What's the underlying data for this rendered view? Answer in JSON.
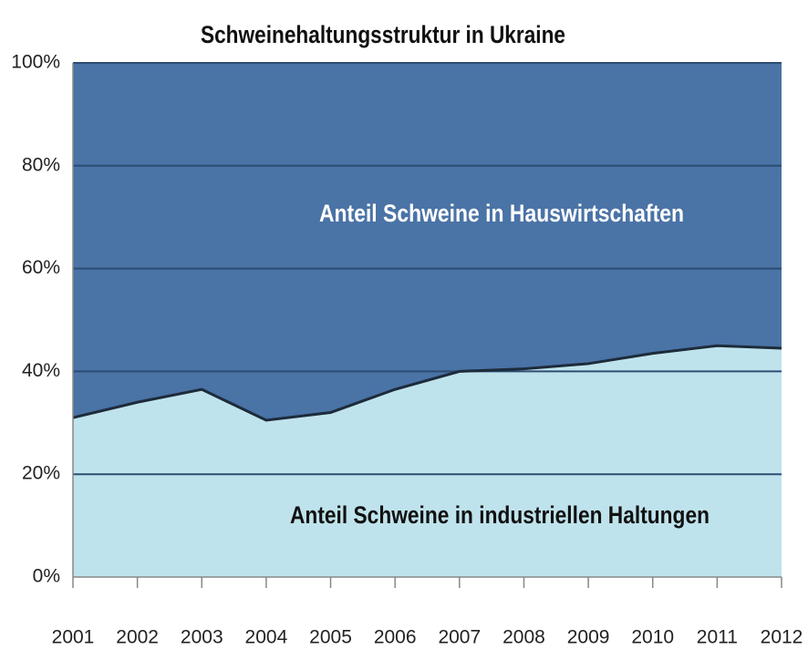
{
  "chart_data": {
    "type": "stacked_area",
    "title": "Schweinehaltungsstruktur in Ukraine",
    "categories": [
      "2001",
      "2002",
      "2003",
      "2004",
      "2005",
      "2006",
      "2007",
      "2008",
      "2009",
      "2010",
      "2011",
      "2012"
    ],
    "series": [
      {
        "name": "Anteil Schweine in industriellen Haltungen",
        "color": "#bfe3ec",
        "values": [
          31,
          34,
          36.5,
          30.5,
          32,
          36.5,
          40,
          40.5,
          41.5,
          43.5,
          45,
          44.5
        ]
      },
      {
        "name": "Anteil Schweine in Hauswirtschaften",
        "color": "#4a73a6",
        "values": [
          69,
          66,
          63.5,
          69.5,
          68,
          63.5,
          60,
          59.5,
          58.5,
          56.5,
          55,
          55.5
        ]
      }
    ],
    "ylim": [
      0,
      100
    ],
    "yticks": [
      {
        "value": 0,
        "label": "0%"
      },
      {
        "value": 20,
        "label": "20%"
      },
      {
        "value": 40,
        "label": "40%"
      },
      {
        "value": 60,
        "label": "60%"
      },
      {
        "value": 80,
        "label": "80%"
      },
      {
        "value": 100,
        "label": "100%"
      }
    ],
    "grid": true
  }
}
